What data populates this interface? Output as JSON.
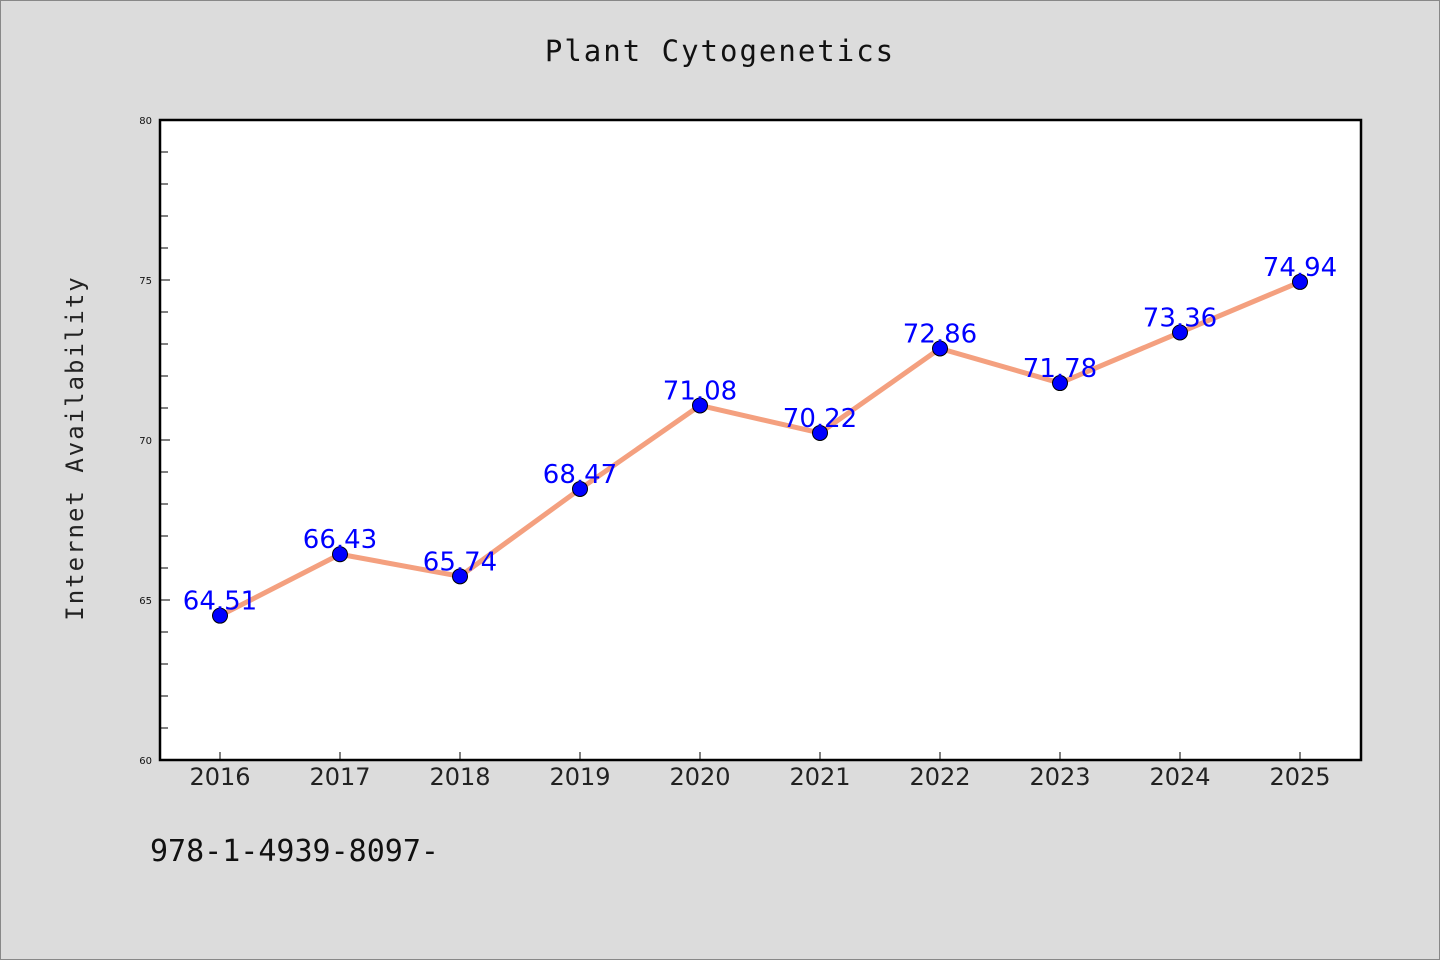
{
  "chart_data": {
    "type": "line",
    "title": "Plant Cytogenetics",
    "xlabel": "",
    "ylabel": "Internet Availability",
    "categories": [
      "2016",
      "2017",
      "2018",
      "2019",
      "2020",
      "2021",
      "2022",
      "2023",
      "2024",
      "2025"
    ],
    "series": [
      {
        "values": [
          64.51,
          66.43,
          65.74,
          68.47,
          71.08,
          70.22,
          72.86,
          71.78,
          73.36,
          74.94
        ],
        "data_labels": [
          "64.51",
          "66.43",
          "65.74",
          "68.47",
          "71.08",
          "70.22",
          "72.86",
          "71.78",
          "73.36",
          "74.94"
        ],
        "line_color": "#f4a07f",
        "marker_color": "#0000ff"
      }
    ],
    "ylim": [
      60,
      80
    ],
    "yticks": [
      "60",
      "65",
      "70",
      "75",
      "80"
    ],
    "grid": false,
    "legend": "none"
  },
  "footer_text": "978-1-4939-8097-"
}
